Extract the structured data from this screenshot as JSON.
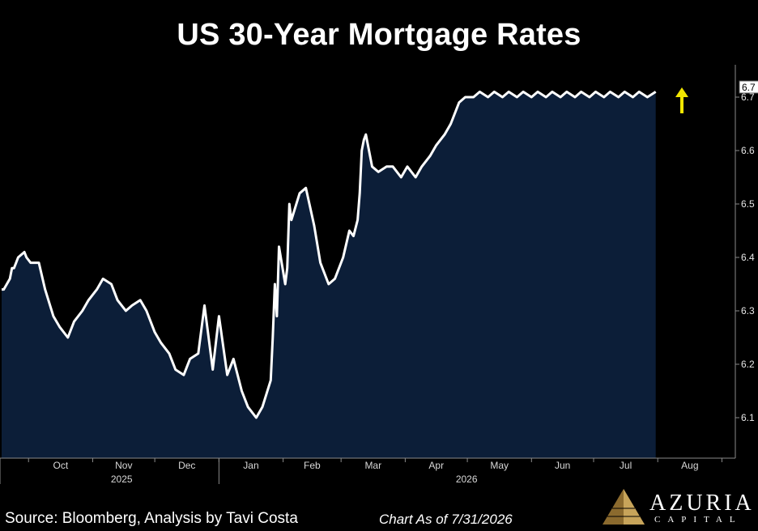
{
  "title": "US 30-Year Mortgage Rates",
  "footer": {
    "source": "Source: Bloomberg, Analysis by Tavi Costa",
    "as_of": "Chart As of 7/31/2026"
  },
  "logo": {
    "name": "AZURIA",
    "sub": "CAPITAL",
    "icon": "pyramid-icon"
  },
  "colors": {
    "background": "#000000",
    "area_fill": "#0c1e38",
    "line": "#ffffff",
    "arrow": "#f2e600",
    "axis": "#8a8a8a"
  },
  "chart_data": {
    "type": "area",
    "title": "US 30-Year Mortgage Rates",
    "xlabel": "",
    "ylabel": "",
    "y_axis_side": "right",
    "ylim": [
      6.0,
      6.8
    ],
    "ytick_labels": [
      "6.1",
      "6.2",
      "6.3",
      "6.4",
      "6.5",
      "6.6",
      "6.7"
    ],
    "month_labels": [
      "Oct",
      "Nov",
      "Dec",
      "Jan",
      "Feb",
      "Mar",
      "Apr",
      "May",
      "Jun",
      "Jul",
      "Aug"
    ],
    "year_labels": [
      "2025",
      "2026"
    ],
    "last_value_label": "6.7",
    "grid": false,
    "annotation": "up-arrow",
    "series": [
      {
        "x": [
          "2025-09-18",
          "2025-09-19",
          "2025-09-22",
          "2025-09-23",
          "2025-09-24",
          "2025-09-25",
          "2025-09-26",
          "2025-09-29",
          "2025-09-30",
          "2025-10-02",
          "2025-10-06",
          "2025-10-09",
          "2025-10-13",
          "2025-10-16",
          "2025-10-20",
          "2025-10-23",
          "2025-10-27",
          "2025-10-30",
          "2025-11-03",
          "2025-11-06",
          "2025-11-10",
          "2025-11-13",
          "2025-11-17",
          "2025-11-20",
          "2025-11-24",
          "2025-11-27",
          "2025-12-01",
          "2025-12-04",
          "2025-12-08",
          "2025-12-11",
          "2025-12-15",
          "2025-12-18",
          "2025-12-22",
          "2025-12-25",
          "2025-12-29",
          "2026-01-01",
          "2026-01-05",
          "2026-01-08",
          "2026-01-12",
          "2026-01-15",
          "2026-01-19",
          "2026-01-22",
          "2026-01-26",
          "2026-01-27",
          "2026-01-28",
          "2026-01-29",
          "2026-01-30",
          "2026-02-02",
          "2026-02-03",
          "2026-02-04",
          "2026-02-05",
          "2026-02-09",
          "2026-02-12",
          "2026-02-16",
          "2026-02-19",
          "2026-02-23",
          "2026-02-26",
          "2026-03-02",
          "2026-03-05",
          "2026-03-07",
          "2026-03-09",
          "2026-03-10",
          "2026-03-11",
          "2026-03-12",
          "2026-03-13",
          "2026-03-16",
          "2026-03-19",
          "2026-03-23",
          "2026-03-26",
          "2026-03-30",
          "2026-04-02",
          "2026-04-06",
          "2026-04-09",
          "2026-04-13",
          "2026-04-16",
          "2026-04-20",
          "2026-04-23",
          "2026-04-27",
          "2026-04-30",
          "2026-05-04",
          "2026-05-07",
          "2026-05-11",
          "2026-05-14",
          "2026-05-18",
          "2026-05-21",
          "2026-05-25",
          "2026-05-28",
          "2026-06-01",
          "2026-06-04",
          "2026-06-08",
          "2026-06-11",
          "2026-06-15",
          "2026-06-18",
          "2026-06-22",
          "2026-06-25",
          "2026-06-29",
          "2026-07-02",
          "2026-07-06",
          "2026-07-09",
          "2026-07-13",
          "2026-07-16",
          "2026-07-20",
          "2026-07-23",
          "2026-07-27",
          "2026-07-31"
        ],
        "values": [
          6.34,
          6.34,
          6.36,
          6.38,
          6.38,
          6.39,
          6.4,
          6.41,
          6.4,
          6.39,
          6.39,
          6.34,
          6.29,
          6.27,
          6.25,
          6.28,
          6.3,
          6.32,
          6.34,
          6.36,
          6.35,
          6.32,
          6.3,
          6.31,
          6.32,
          6.3,
          6.26,
          6.24,
          6.22,
          6.19,
          6.18,
          6.21,
          6.22,
          6.31,
          6.19,
          6.29,
          6.18,
          6.21,
          6.15,
          6.12,
          6.1,
          6.12,
          6.17,
          6.25,
          6.35,
          6.29,
          6.42,
          6.35,
          6.38,
          6.5,
          6.47,
          6.52,
          6.53,
          6.46,
          6.39,
          6.35,
          6.36,
          6.4,
          6.45,
          6.44,
          6.47,
          6.52,
          6.6,
          6.62,
          6.63,
          6.57,
          6.56,
          6.57,
          6.57,
          6.55,
          6.57,
          6.55,
          6.57,
          6.59,
          6.61,
          6.63,
          6.65,
          6.69,
          6.7,
          6.7,
          6.71,
          6.7,
          6.71,
          6.7,
          6.71,
          6.7,
          6.71,
          6.7,
          6.71,
          6.7,
          6.71,
          6.7,
          6.71,
          6.7,
          6.71,
          6.7,
          6.71,
          6.7,
          6.71,
          6.7,
          6.71,
          6.7,
          6.71,
          6.7,
          6.71
        ]
      }
    ]
  }
}
